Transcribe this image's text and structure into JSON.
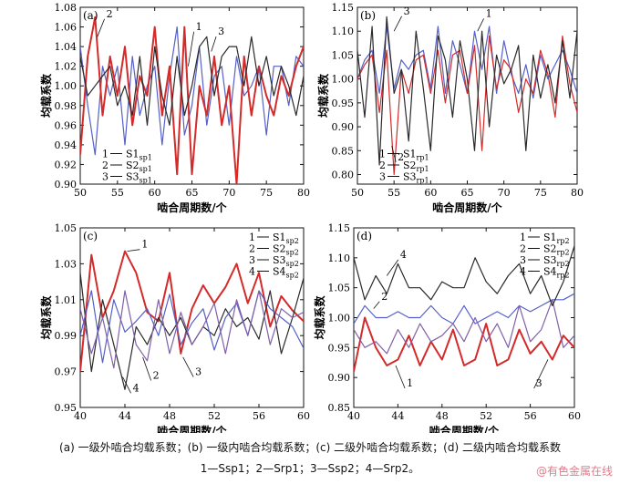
{
  "caption": {
    "line1": "(a) 一级外啮合均载系数；(b) 一级内啮合均载系数；(c) 二级外啮合均载系数；(d) 二级内啮合均载系数",
    "line2": "1—Ssp1；2—Srp1；3—Ssp2；4—Srp2。"
  },
  "watermark": "@有色金属在线",
  "chart_data": [
    {
      "id": "a",
      "panel_label": "(a)",
      "type": "line",
      "xlabel": "啮合周期数/个",
      "ylabel": "均载系数",
      "xlim": [
        50,
        80
      ],
      "ylim": [
        0.9,
        1.08
      ],
      "xticks": [
        50,
        55,
        60,
        65,
        70,
        75,
        80
      ],
      "yticks": [
        0.9,
        0.92,
        0.94,
        0.96,
        0.98,
        1.0,
        1.02,
        1.04,
        1.06,
        1.08
      ],
      "x_decimals": 0,
      "y_decimals": 2,
      "grid": false,
      "legend_position": "bottom-left",
      "x": [
        50,
        51,
        52,
        53,
        54,
        55,
        56,
        57,
        58,
        59,
        60,
        61,
        62,
        63,
        64,
        65,
        66,
        67,
        68,
        69,
        70,
        71,
        72,
        73,
        74,
        75,
        76,
        77,
        78,
        79,
        80
      ],
      "series": [
        {
          "name": "S1",
          "sub": "sp1",
          "color": "#5560c8",
          "width": 1.2,
          "values": [
            1.04,
            0.98,
            0.93,
            1.02,
            0.99,
            1.02,
            0.94,
            1.03,
            0.97,
            1.0,
            1.02,
            0.94,
            1.01,
            1.06,
            0.95,
            0.98,
            1.04,
            0.96,
            1.01,
            1.02,
            0.96,
            1.03,
            0.99,
            1.0,
            1.02,
            0.95,
            1.02,
            1.02,
            0.98,
            1.03,
            1.02
          ]
        },
        {
          "name": "S2",
          "sub": "sp1",
          "color": "#d42a2a",
          "width": 2.0,
          "values": [
            0.93,
            1.03,
            1.07,
            0.97,
            1.03,
            0.99,
            1.04,
            0.96,
            1.01,
            0.99,
            1.06,
            0.97,
            1.02,
            0.91,
            1.06,
            0.91,
            1.0,
            0.97,
            1.03,
            0.96,
            1.0,
            0.9,
            1.03,
            0.97,
            1.02,
            0.99,
            0.97,
            1.01,
            0.99,
            1.02,
            1.04
          ]
        },
        {
          "name": "S3",
          "sub": "sp1",
          "color": "#2a2a2a",
          "width": 1.2,
          "values": [
            1.03,
            0.99,
            1.0,
            1.01,
            1.02,
            0.98,
            1.0,
            0.97,
            1.03,
            0.96,
            1.04,
            0.99,
            0.96,
            1.03,
            0.97,
            1.0,
            1.04,
            1.05,
            0.99,
            1.03,
            1.04,
            1.04,
            1.0,
            1.05,
            1.0,
            1.03,
            0.99,
            1.02,
            1.0,
            0.97,
            1.01
          ]
        }
      ],
      "annotations": [
        {
          "text": "1",
          "x": 65.5,
          "y": 1.057,
          "ax": 64.5,
          "ay": 1.02
        },
        {
          "text": "2",
          "x": 53.5,
          "y": 1.07,
          "ax": 52.3,
          "ay": 1.05
        },
        {
          "text": "3",
          "x": 68.5,
          "y": 1.052,
          "ax": 67.6,
          "ay": 1.035
        }
      ]
    },
    {
      "id": "b",
      "panel_label": "(b)",
      "type": "line",
      "xlabel": "啮合周期数/个",
      "ylabel": "均载系数",
      "xlim": [
        50,
        80
      ],
      "ylim": [
        0.78,
        1.15
      ],
      "xticks": [
        50,
        55,
        60,
        65,
        70,
        75,
        80
      ],
      "yticks": [
        0.8,
        0.85,
        0.9,
        0.95,
        1.0,
        1.05,
        1.1,
        1.15
      ],
      "x_decimals": 0,
      "y_decimals": 2,
      "grid": false,
      "legend_position": "bottom-left",
      "x": [
        50,
        51,
        52,
        53,
        54,
        55,
        56,
        57,
        58,
        59,
        60,
        61,
        62,
        63,
        64,
        65,
        66,
        67,
        68,
        69,
        70,
        71,
        72,
        73,
        74,
        75,
        76,
        77,
        78,
        79,
        80
      ],
      "series": [
        {
          "name": "S1",
          "sub": "rp1",
          "color": "#5560c8",
          "width": 1.2,
          "values": [
            1.0,
            1.04,
            1.06,
            0.97,
            1.11,
            0.98,
            1.04,
            1.02,
            1.05,
            1.06,
            0.98,
            1.11,
            0.97,
            1.08,
            1.03,
            0.97,
            1.1,
            1.02,
            1.11,
            0.97,
            1.08,
            1.01,
            0.97,
            1.03,
            0.96,
            1.05,
            1.0,
            1.03,
            1.06,
            1.02,
            0.97
          ]
        },
        {
          "name": "S2",
          "sub": "rp1",
          "color": "#d42a2a",
          "width": 1.2,
          "values": [
            1.0,
            1.03,
            1.05,
            0.93,
            1.06,
            0.8,
            1.02,
            0.97,
            1.04,
            1.05,
            0.97,
            1.06,
            0.95,
            1.05,
            1.06,
            0.97,
            1.07,
            0.85,
            1.09,
            0.98,
            1.04,
            1.02,
            0.93,
            1.0,
            0.97,
            1.06,
            1.01,
            0.92,
            1.09,
            0.99,
            0.93
          ]
        },
        {
          "name": "S3",
          "sub": "rp1",
          "color": "#2a2a2a",
          "width": 1.2,
          "values": [
            1.06,
            0.92,
            1.11,
            0.82,
            1.13,
            0.97,
            1.02,
            0.87,
            1.1,
            0.98,
            0.85,
            1.09,
            1.04,
            0.92,
            1.08,
            1.0,
            0.85,
            1.1,
            0.9,
            1.05,
            0.99,
            1.02,
            1.07,
            0.85,
            1.05,
            0.96,
            1.03,
            0.95,
            1.08,
            0.96,
            1.1
          ]
        }
      ],
      "annotations": [
        {
          "text": "1",
          "x": 67.5,
          "y": 1.13,
          "ax": 66.4,
          "ay": 1.1
        },
        {
          "text": "2",
          "x": 55.5,
          "y": 0.83,
          "ax": 54.7,
          "ay": 0.86
        },
        {
          "text": "3",
          "x": 56.3,
          "y": 1.135,
          "ax": 55.0,
          "ay": 1.1
        }
      ]
    },
    {
      "id": "c",
      "panel_label": "(c)",
      "type": "line",
      "xlabel": "啮合周期数/个",
      "ylabel": "均载系数",
      "xlim": [
        40,
        60
      ],
      "ylim": [
        0.95,
        1.05
      ],
      "xticks": [
        40,
        44,
        48,
        52,
        56,
        60
      ],
      "yticks": [
        0.95,
        0.97,
        0.99,
        1.01,
        1.03,
        1.05
      ],
      "x_decimals": 0,
      "y_decimals": 2,
      "grid": false,
      "legend_position": "top-right",
      "x": [
        40,
        41,
        42,
        43,
        44,
        45,
        46,
        47,
        48,
        49,
        50,
        51,
        52,
        53,
        54,
        55,
        56,
        57,
        58,
        59,
        60
      ],
      "series": [
        {
          "name": "S1",
          "sub": "sp2",
          "color": "#d42a2a",
          "width": 2.0,
          "values": [
            0.97,
            1.035,
            1.0,
            1.015,
            1.037,
            1.025,
            1.003,
            0.998,
            1.025,
            0.98,
            1.005,
            1.018,
            1.008,
            1.017,
            1.03,
            1.008,
            1.025,
            0.995,
            1.012,
            1.004,
            0.998
          ]
        },
        {
          "name": "S2",
          "sub": "sp2",
          "color": "#2a2a2a",
          "width": 1.2,
          "values": [
            1.025,
            0.97,
            1.01,
            0.985,
            0.96,
            0.995,
            0.985,
            1.0,
            0.99,
            1.0,
            0.985,
            0.995,
            0.99,
            1.005,
            0.995,
            1.0,
            0.988,
            1.015,
            0.98,
            1.0,
            1.022
          ]
        },
        {
          "name": "S3",
          "sub": "sp2",
          "color": "#5560c8",
          "width": 1.2,
          "values": [
            0.99,
            1.015,
            0.975,
            1.01,
            0.992,
            0.998,
            1.005,
            0.99,
            1.013,
            0.985,
            0.997,
            1.005,
            0.982,
            1.0,
            1.008,
            0.99,
            1.015,
            1.005,
            1.0,
            0.995,
            0.983
          ]
        },
        {
          "name": "S4",
          "sub": "sp2",
          "color": "#8060a8",
          "width": 1.2,
          "values": [
            1.005,
            0.98,
            1.0,
            0.972,
            1.015,
            0.985,
            0.976,
            1.01,
            0.98,
            1.003,
            0.985,
            0.995,
            1.008,
            0.98,
            1.01,
            0.99,
            1.015,
            0.985,
            1.005,
            1.0,
            1.003
          ]
        }
      ],
      "annotations": [
        {
          "text": "1",
          "x": 45.5,
          "y": 1.039,
          "ax": 44.2,
          "ay": 1.037
        },
        {
          "text": "2",
          "x": 46.5,
          "y": 0.966,
          "ax": 45.6,
          "ay": 0.978
        },
        {
          "text": "3",
          "x": 50.3,
          "y": 0.968,
          "ax": 49.2,
          "ay": 0.978
        },
        {
          "text": "4",
          "x": 44.7,
          "y": 0.959,
          "ax": 43.8,
          "ay": 0.967
        }
      ]
    },
    {
      "id": "d",
      "panel_label": "(d)",
      "type": "line",
      "xlabel": "啮合周期数/个",
      "ylabel": "均载系数",
      "xlim": [
        40,
        60
      ],
      "ylim": [
        0.85,
        1.15
      ],
      "xticks": [
        40,
        44,
        48,
        52,
        56,
        60
      ],
      "yticks": [
        0.85,
        0.9,
        0.95,
        1.0,
        1.05,
        1.1,
        1.15
      ],
      "x_decimals": 0,
      "y_decimals": 2,
      "grid": false,
      "legend_position": "top-right",
      "x": [
        40,
        41,
        42,
        43,
        44,
        45,
        46,
        47,
        48,
        49,
        50,
        51,
        52,
        53,
        54,
        55,
        56,
        57,
        58,
        59,
        60
      ],
      "series": [
        {
          "name": "S1",
          "sub": "rp2",
          "color": "#d42a2a",
          "width": 2.0,
          "values": [
            0.91,
            1.0,
            0.95,
            0.92,
            0.93,
            0.97,
            0.92,
            0.96,
            0.93,
            0.98,
            0.92,
            0.93,
            0.99,
            0.92,
            0.93,
            0.98,
            0.94,
            0.96,
            0.93,
            0.97,
            0.95
          ]
        },
        {
          "name": "S2",
          "sub": "rp2",
          "color": "#5560c8",
          "width": 1.2,
          "values": [
            0.99,
            1.02,
            1.0,
            1.0,
            1.01,
            1.0,
            1.0,
            1.02,
            1.0,
            0.99,
            1.02,
            0.99,
            1.0,
            1.01,
            1.0,
            1.02,
            1.01,
            1.02,
            1.03,
            1.03,
            1.04
          ]
        },
        {
          "name": "S3",
          "sub": "rp2",
          "color": "#8060a8",
          "width": 1.2,
          "values": [
            0.98,
            0.95,
            0.96,
            0.94,
            0.98,
            0.95,
            0.99,
            0.96,
            0.97,
            0.99,
            0.96,
            1.0,
            0.96,
            0.99,
            0.95,
            1.02,
            0.96,
            0.98,
            1.03,
            0.95,
            0.97
          ]
        },
        {
          "name": "S4",
          "sub": "rp2",
          "color": "#2a2a2a",
          "width": 1.2,
          "values": [
            1.1,
            1.03,
            1.07,
            1.04,
            1.09,
            1.05,
            1.05,
            1.03,
            1.06,
            1.05,
            1.05,
            1.1,
            1.06,
            1.04,
            1.07,
            1.09,
            1.04,
            1.07,
            1.02,
            1.06,
            1.12
          ]
        }
      ],
      "annotations": [
        {
          "text": "1",
          "x": 44.8,
          "y": 0.885,
          "ax": 43.8,
          "ay": 0.92
        },
        {
          "text": "2",
          "x": 42.5,
          "y": 1.03,
          "ax": 41.8,
          "ay": 1.015
        },
        {
          "text": "3",
          "x": 56.5,
          "y": 0.885,
          "ax": 57.6,
          "ay": 0.93
        },
        {
          "text": "4",
          "x": 44.2,
          "y": 1.1,
          "ax": 43.0,
          "ay": 1.07
        }
      ]
    }
  ]
}
